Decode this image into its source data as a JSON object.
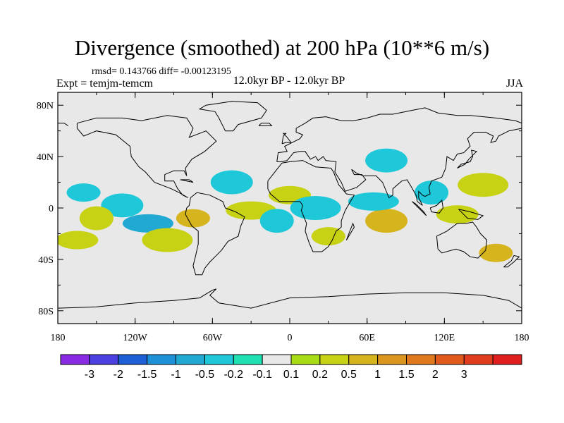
{
  "figure": {
    "title": "Divergence (smoothed) at 200 hPa (10**6 m/s)",
    "stats": "rmsd= 0.143766 diff= -0.00123195",
    "experiment": "Expt = temjm-temcm",
    "period": "12.0kyr BP - 12.0kyr BP",
    "season": "JJA"
  },
  "map": {
    "projection": "cylindrical-equidistant",
    "lon_range": [
      -180,
      180
    ],
    "lat_range": [
      -90,
      90
    ],
    "x_ticks": [
      {
        "lon": -180,
        "label": "180"
      },
      {
        "lon": -120,
        "label": "120W"
      },
      {
        "lon": -60,
        "label": "60W"
      },
      {
        "lon": 0,
        "label": "0"
      },
      {
        "lon": 60,
        "label": "60E"
      },
      {
        "lon": 120,
        "label": "120E"
      },
      {
        "lon": 180,
        "label": "180"
      }
    ],
    "y_ticks": [
      {
        "lat": 80,
        "label": "80N"
      },
      {
        "lat": 40,
        "label": "40N"
      },
      {
        "lat": 0,
        "label": "0"
      },
      {
        "lat": -40,
        "label": "40S"
      },
      {
        "lat": -80,
        "label": "80S"
      }
    ],
    "background_color": "#e8e8e8",
    "coastline_color": "#000000"
  },
  "colorbar": {
    "colors": [
      "#8a2be2",
      "#4b3fe0",
      "#1e5fd6",
      "#1e90d8",
      "#21a9d4",
      "#1ec8d8",
      "#1ee0b0",
      "#e8e8e8",
      "#a8dc14",
      "#c8d214",
      "#d6b41e",
      "#dc961e",
      "#e0781e",
      "#e05a1e",
      "#e03c1e",
      "#e01e1e"
    ],
    "labels": [
      "-3",
      "-2",
      "-1.5",
      "-1",
      "-0.5",
      "-0.2",
      "-0.1",
      "0.1",
      "0.2",
      "0.5",
      "1",
      "1.5",
      "2",
      "3"
    ]
  },
  "chart_data": {
    "type": "heatmap",
    "title": "Divergence (smoothed) at 200 hPa (10**6 m/s)",
    "variable": "divergence difference",
    "units": "10**6 m/s",
    "levels": [
      -3,
      -2,
      -1.5,
      -1,
      -0.5,
      -0.2,
      -0.1,
      0.1,
      0.2,
      0.5,
      1,
      1.5,
      2,
      3
    ],
    "xlabel": "",
    "ylabel": "",
    "xlim": [
      -180,
      180
    ],
    "ylim": [
      -90,
      90
    ],
    "rmsd": 0.143766,
    "diff": -0.00123195,
    "regions": [
      {
        "lon": -160,
        "lat": 12,
        "value": -0.3
      },
      {
        "lon": -130,
        "lat": 2,
        "value": -0.4
      },
      {
        "lon": -110,
        "lat": -12,
        "value": -0.8
      },
      {
        "lon": -150,
        "lat": -8,
        "value": 0.4
      },
      {
        "lon": -165,
        "lat": -25,
        "value": 0.3
      },
      {
        "lon": -95,
        "lat": -25,
        "value": 0.4
      },
      {
        "lon": -75,
        "lat": -8,
        "value": 0.5
      },
      {
        "lon": -45,
        "lat": 20,
        "value": -0.3
      },
      {
        "lon": -30,
        "lat": -2,
        "value": 0.3
      },
      {
        "lon": -10,
        "lat": -10,
        "value": -0.5
      },
      {
        "lon": 0,
        "lat": 10,
        "value": 0.3
      },
      {
        "lon": 20,
        "lat": 0,
        "value": -0.4
      },
      {
        "lon": 30,
        "lat": -22,
        "value": 0.3
      },
      {
        "lon": 75,
        "lat": -10,
        "value": 0.7
      },
      {
        "lon": 65,
        "lat": 5,
        "value": -0.3
      },
      {
        "lon": 110,
        "lat": 12,
        "value": -0.4
      },
      {
        "lon": 130,
        "lat": -5,
        "value": 0.3
      },
      {
        "lon": 150,
        "lat": 18,
        "value": 0.3
      },
      {
        "lon": 160,
        "lat": -35,
        "value": 0.5
      },
      {
        "lon": 75,
        "lat": 37,
        "value": -0.3
      }
    ]
  }
}
